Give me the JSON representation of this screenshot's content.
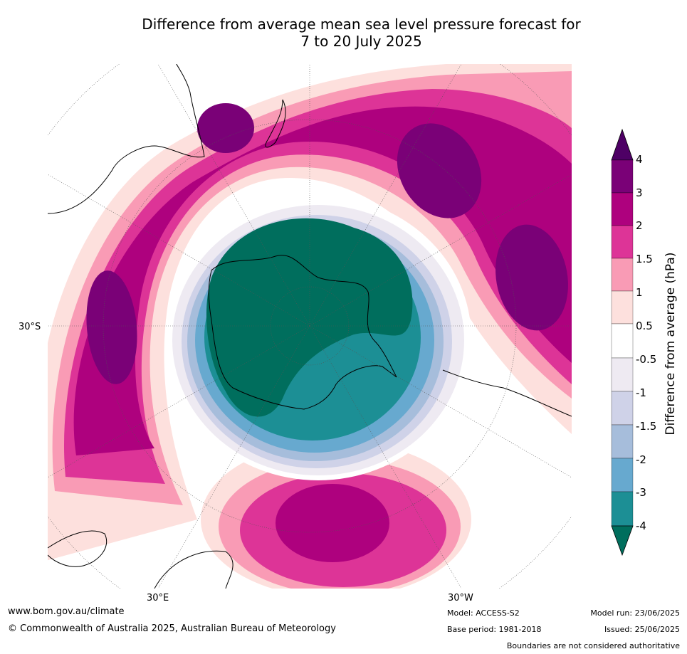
{
  "title": {
    "line1": "Difference from average mean sea level pressure forecast for",
    "line2": "7 to 20 July 2025"
  },
  "map": {
    "projection": "south polar stereographic",
    "labels": {
      "lat_30s": "30°S",
      "lon_30e": "30°E",
      "lon_30w": "30°W"
    },
    "colors": {
      "ocean_neutral": "#ffffff",
      "antarctic_low": "#006e5d"
    }
  },
  "colorbar": {
    "label": "Difference from average (hPa)",
    "ticks": [
      "4",
      "3",
      "2",
      "1.5",
      "1",
      "0.5",
      "-0.5",
      "-1",
      "-1.5",
      "-2",
      "-3",
      "-4"
    ],
    "levels": [
      {
        "range": ">4",
        "color": "#4e0065"
      },
      {
        "range": "3 to 4",
        "color": "#7a0177"
      },
      {
        "range": "2 to 3",
        "color": "#ae017e"
      },
      {
        "range": "1.5 to 2",
        "color": "#dd3497"
      },
      {
        "range": "1 to 1.5",
        "color": "#f99bb5"
      },
      {
        "range": "0.5 to 1",
        "color": "#fde0dd"
      },
      {
        "range": "-0.5 to 0.5",
        "color": "#ffffff"
      },
      {
        "range": "-1 to -0.5",
        "color": "#eeeaf2"
      },
      {
        "range": "-1.5 to -1",
        "color": "#cfd2e8"
      },
      {
        "range": "-2 to -1.5",
        "color": "#a6bddb"
      },
      {
        "range": "-3 to -2",
        "color": "#67a9cf"
      },
      {
        "range": "-4 to -3",
        "color": "#1c8f95"
      },
      {
        "range": "<-4",
        "color": "#006e5d"
      }
    ]
  },
  "footer": {
    "url": "www.bom.gov.au/climate",
    "copyright": "© Commonwealth of Australia 2025, Australian Bureau of Meteorology",
    "model": "Model: ACCESS-S2",
    "base_period": "Base period: 1981-2018",
    "model_run": "Model run: 23/06/2025",
    "issued": "Issued: 25/06/2025",
    "disclaimer": "Boundaries are not considered authoritative"
  }
}
